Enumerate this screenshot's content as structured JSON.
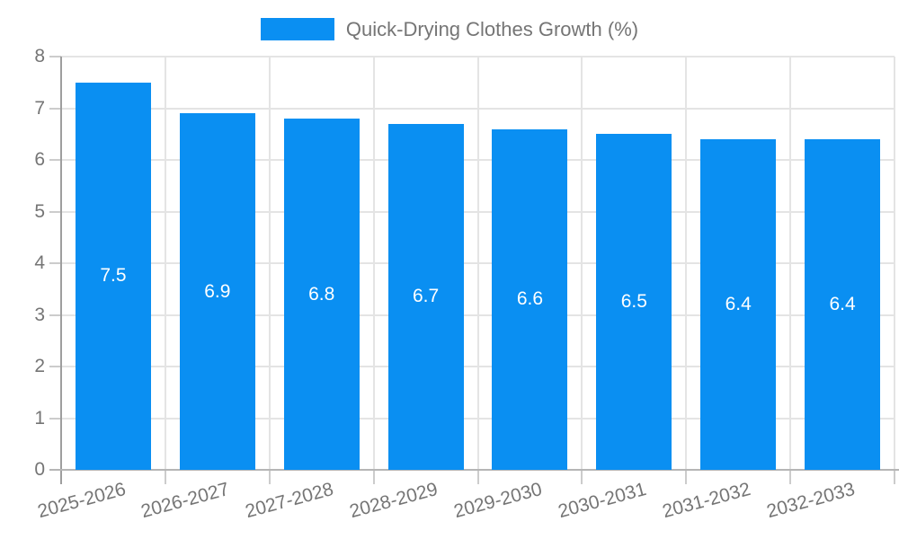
{
  "chart_data": {
    "type": "bar",
    "title": "",
    "legend": "Quick-Drying Clothes Growth (%)",
    "legend_position": "top-center",
    "categories": [
      "2025-2026",
      "2026-2027",
      "2027-2028",
      "2028-2029",
      "2029-2030",
      "2030-2031",
      "2031-2032",
      "2032-2033"
    ],
    "series": [
      {
        "name": "Quick-Drying Clothes Growth (%)",
        "values": [
          7.5,
          6.9,
          6.8,
          6.7,
          6.6,
          6.5,
          6.4,
          6.4
        ]
      }
    ],
    "value_labels": [
      "7.5",
      "6.9",
      "6.8",
      "6.7",
      "6.6",
      "6.5",
      "6.4",
      "6.4"
    ],
    "xlabel": "",
    "ylabel": "",
    "ylim": [
      0,
      8
    ],
    "yticks": [
      0,
      1,
      2,
      3,
      4,
      5,
      6,
      7,
      8
    ],
    "grid": true,
    "colors": {
      "bar": "#0a8ff2",
      "axis_text": "#757575",
      "value_text": "#ffffff",
      "gridline": "#e4e4e4"
    }
  }
}
